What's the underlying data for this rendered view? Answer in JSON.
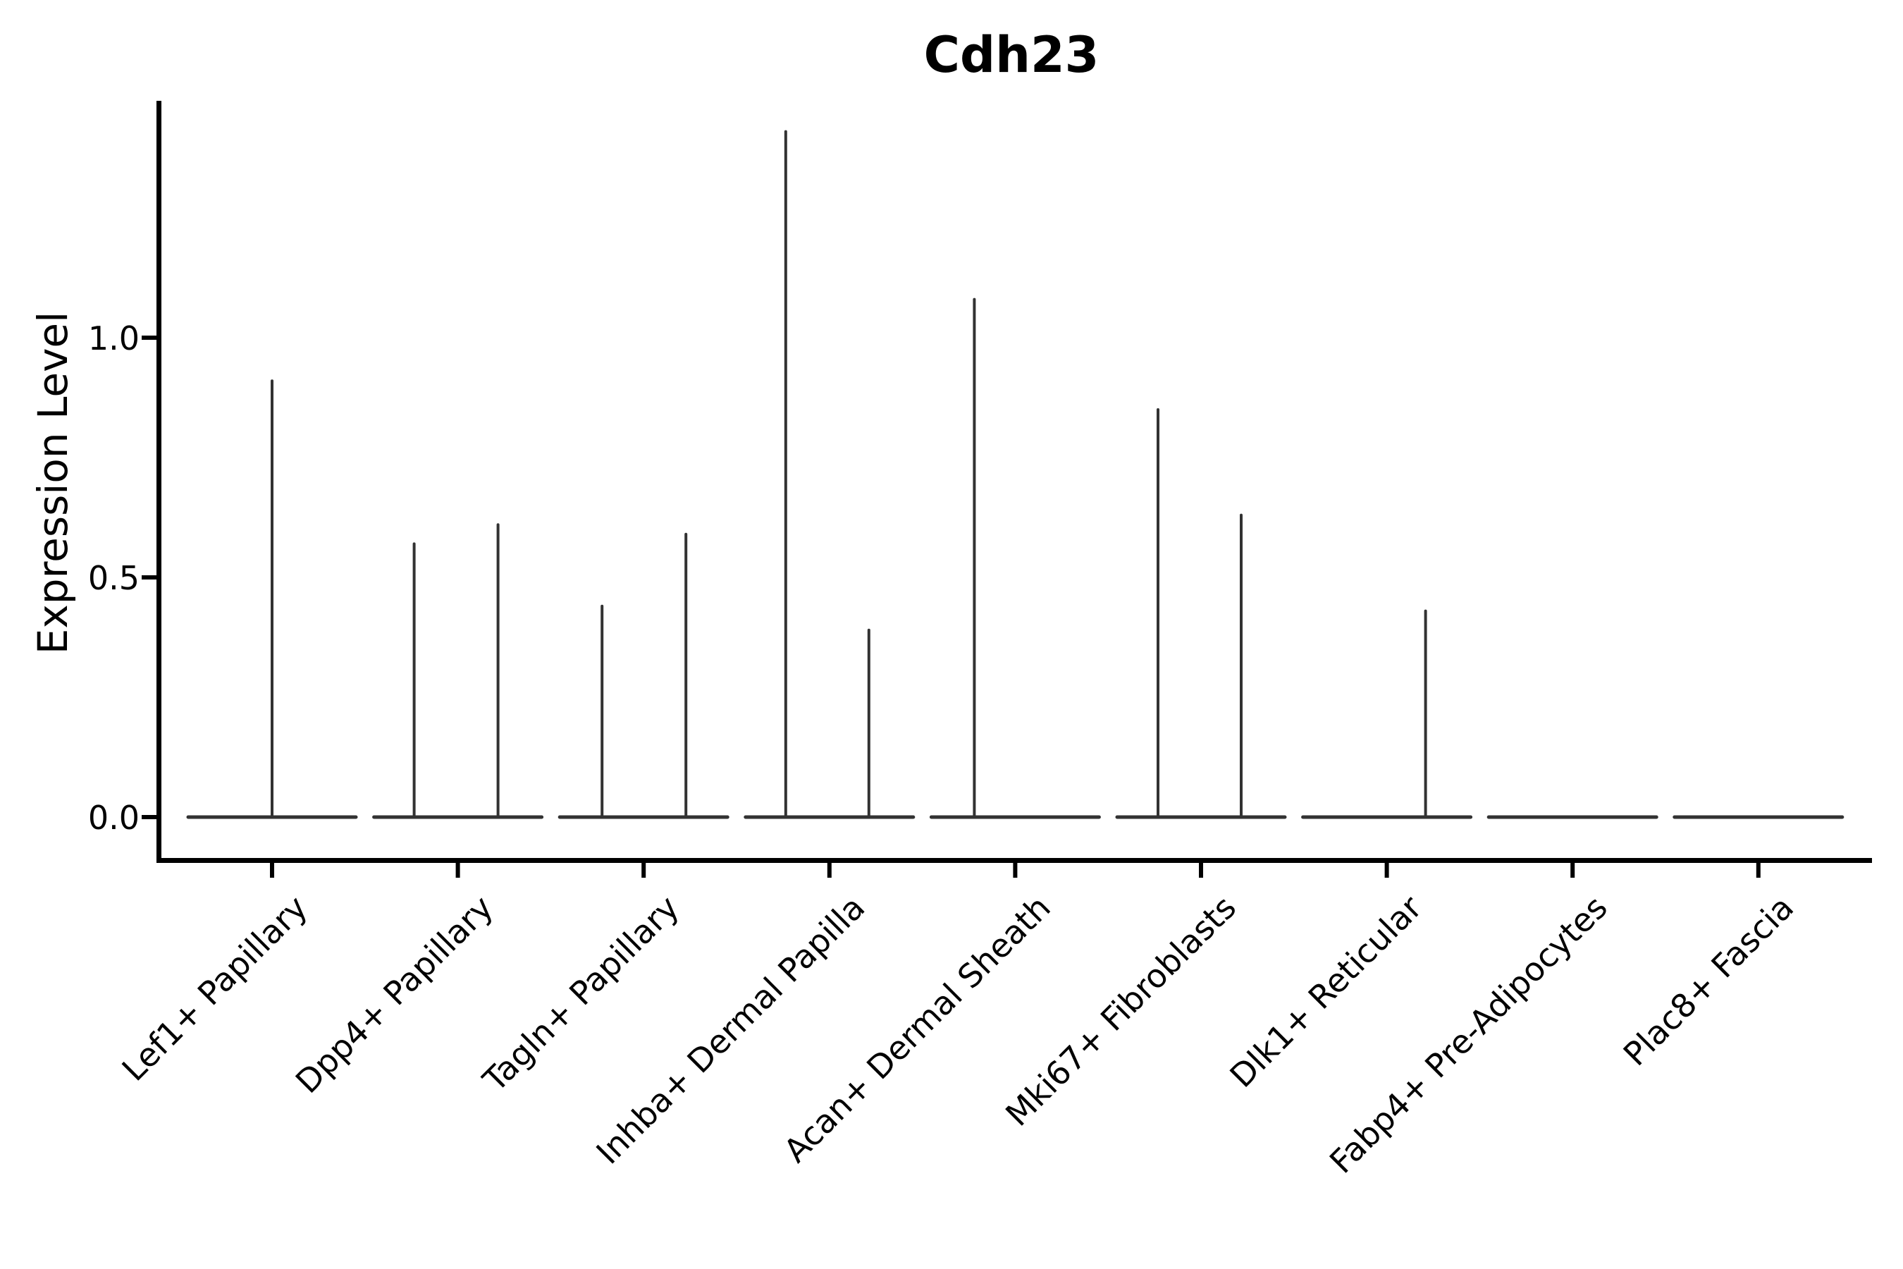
{
  "chart_data": {
    "type": "violin",
    "title": "Cdh23",
    "ylabel": "Expression Level",
    "yticks": [
      {
        "label": "0.0",
        "value": 0.0
      },
      {
        "label": "0.5",
        "value": 0.5
      },
      {
        "label": "1.0",
        "value": 1.0
      }
    ],
    "ylim": [
      -0.09,
      1.49
    ],
    "grid": false,
    "legend": null,
    "colors": {
      "background": "#ffffff",
      "axis": "#000000",
      "violin": "#323232",
      "text": "#000000"
    },
    "categories": [
      {
        "label": "Lef1+ Papillary",
        "spikes": [
          {
            "offset": 0,
            "value": 0.91
          }
        ]
      },
      {
        "label": "Dpp4+ Papillary",
        "spikes": [
          {
            "offset": -62,
            "value": 0.57
          },
          {
            "offset": 57,
            "value": 0.61
          }
        ]
      },
      {
        "label": "Tagln+ Papillary",
        "spikes": [
          {
            "offset": -59,
            "value": 0.44
          },
          {
            "offset": 60,
            "value": 0.59
          }
        ]
      },
      {
        "label": "Inhba+ Dermal Papilla",
        "spikes": [
          {
            "offset": -62,
            "value": 1.43
          },
          {
            "offset": 56,
            "value": 0.39
          }
        ]
      },
      {
        "label": "Acan+ Dermal Sheath",
        "spikes": [
          {
            "offset": -58,
            "value": 1.08
          }
        ]
      },
      {
        "label": "Mki67+ Fibroblasts",
        "spikes": [
          {
            "offset": -61,
            "value": 0.85
          },
          {
            "offset": 57,
            "value": 0.63
          }
        ]
      },
      {
        "label": "Dlk1+ Reticular",
        "spikes": [
          {
            "offset": 55,
            "value": 0.43
          }
        ]
      },
      {
        "label": "Fabp4+ Pre-Adipocytes",
        "spikes": []
      },
      {
        "label": "Plac8+ Fascia",
        "spikes": []
      }
    ]
  }
}
